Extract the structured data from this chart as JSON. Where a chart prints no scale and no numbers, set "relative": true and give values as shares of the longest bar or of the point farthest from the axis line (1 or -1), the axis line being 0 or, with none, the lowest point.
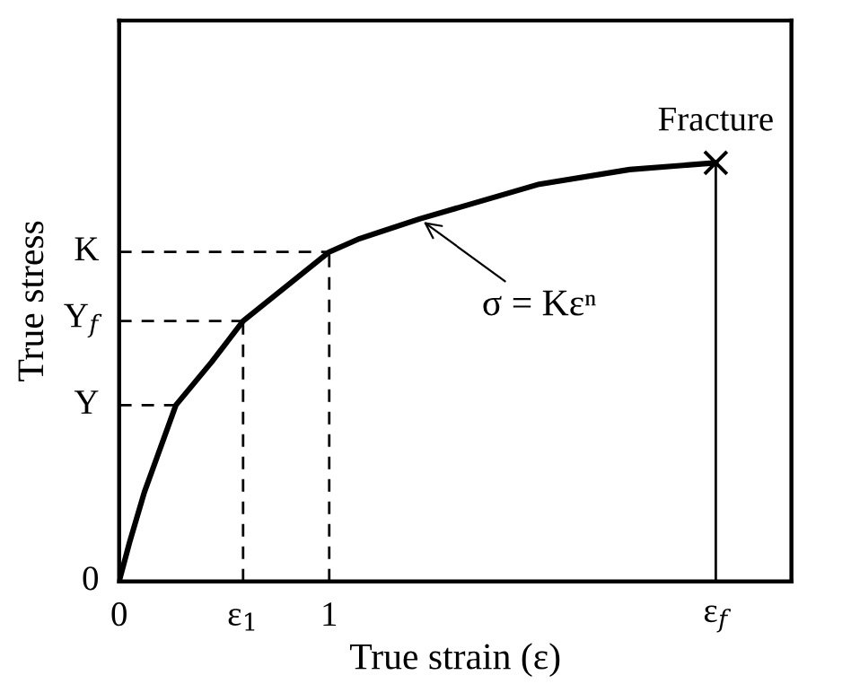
{
  "chart_data": {
    "type": "line",
    "xlabel": "True strain (ε)",
    "ylabel": "True stress",
    "relative": true,
    "x": [
      0,
      0.05,
      0.12,
      0.27,
      0.44,
      0.59,
      1,
      1.145,
      1.43,
      2.0,
      2.43,
      2.84
    ],
    "series": [
      {
        "color": "#000000",
        "marker": "none",
        "line_style": "solid",
        "values": [
          0,
          0.094,
          0.213,
          0.421,
          0.524,
          0.622,
          0.787,
          0.819,
          0.866,
          0.949,
          0.984,
          1
        ]
      },
      {
        "type": "scatter",
        "color": "#000000",
        "marker": "cross",
        "x": [
          2.84
        ],
        "values": [
          1
        ]
      }
    ],
    "xlim": [
      0,
      3.2
    ],
    "xticks": [
      0,
      {
        "value": 0.59,
        "label": "ε$_{1}$"
      },
      1,
      {
        "value": 2.84,
        "label": "ε$_{f}$"
      }
    ],
    "ref_lines": [
      {
        "axis": "y",
        "value": 0.421,
        "label": "Y",
        "line_style": "dashed",
        "color": "#000000"
      },
      {
        "axis": "y",
        "value": 0.622,
        "label": "Y$_{f}$",
        "line_style": "dashed",
        "color": "#000000"
      },
      {
        "axis": "y",
        "value": 0.787,
        "label": "K",
        "line_style": "dashed",
        "color": "#000000"
      },
      {
        "axis": "x",
        "value": 0.59,
        "line_style": "dashed",
        "color": "#000000"
      },
      {
        "axis": "x",
        "value": 1,
        "line_style": "dashed",
        "color": "#000000"
      },
      {
        "axis": "x",
        "value": 2.84,
        "line_style": "solid",
        "color": "#000000"
      }
    ],
    "annotations": [
      "0",
      {
        "text": "Fracture",
        "x": 2.84,
        "y": 1
      },
      {
        "text": "σ = Kεⁿ",
        "x": 1.43,
        "y": 0.866
      }
    ],
    "grid": false,
    "legend": false
  }
}
